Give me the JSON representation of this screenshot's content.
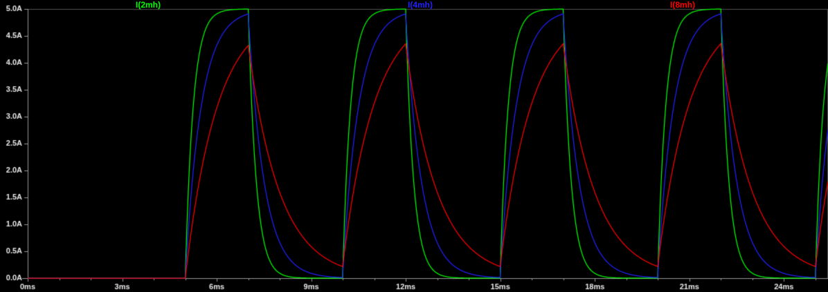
{
  "colors": {
    "background": "#000000",
    "border": "#565656",
    "axis": "#9a9a9a",
    "tick_text": "#e6e6e6"
  },
  "chart_data": {
    "type": "line",
    "title": "",
    "legend_position": "top",
    "grid": false,
    "x_axis": {
      "unit": "ms",
      "min_ms": 0,
      "max_ms": 25.4,
      "major_tick_ms": 3,
      "minor_tick_ms": 1,
      "tick_labels": [
        "0ms",
        "3ms",
        "6ms",
        "9ms",
        "12ms",
        "15ms",
        "18ms",
        "21ms",
        "24ms"
      ]
    },
    "y_axis": {
      "unit": "A",
      "min_a": 0,
      "max_a": 5,
      "tick_a": 0.5,
      "tick_labels": [
        "0.0A",
        "0.5A",
        "1.0A",
        "1.5A",
        "2.0A",
        "2.5A",
        "3.0A",
        "3.5A",
        "4.0A",
        "4.5A",
        "5.0A"
      ]
    },
    "series": [
      {
        "name": "I(2mh)",
        "color": "#00ff00",
        "tau_ms": 0.25,
        "approx_peak_a": 5.0,
        "approx_trough_a": 0.0
      },
      {
        "name": "I(4mh)",
        "color": "#2222ff",
        "tau_ms": 0.5,
        "approx_peak_a": 4.9,
        "approx_trough_a": 0.01
      },
      {
        "name": "I(8mh)",
        "color": "#ff0000",
        "tau_ms": 1.0,
        "approx_peak_a": 4.35,
        "approx_trough_a": 0.22
      }
    ],
    "excitation": {
      "type": "pulse",
      "start_ms": 5,
      "on_ms": 2,
      "period_ms": 5,
      "amplitude_a": 5,
      "rise_times_ms": [
        5,
        10,
        15,
        20
      ],
      "fall_times_ms": [
        7,
        12,
        17,
        22
      ]
    }
  }
}
